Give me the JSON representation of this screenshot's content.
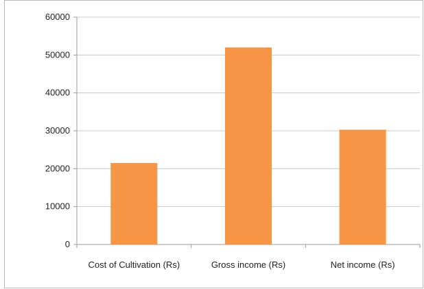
{
  "chart_data": {
    "type": "bar",
    "title": "",
    "xlabel": "",
    "ylabel": "",
    "categories": [
      "Cost of Cultivation (Rs)",
      "Gross income (Rs)",
      "Net income (Rs)"
    ],
    "values": [
      21500,
      52000,
      30300
    ],
    "ylim": [
      0,
      60000
    ],
    "yticks": [
      "0",
      "10000",
      "20000",
      "30000",
      "40000",
      "50000",
      "60000"
    ],
    "grid": true,
    "legend": "none",
    "bar_color": "#f79646",
    "gridline_color": "#c8c8c8",
    "axis_color": "#9a9a9a"
  }
}
